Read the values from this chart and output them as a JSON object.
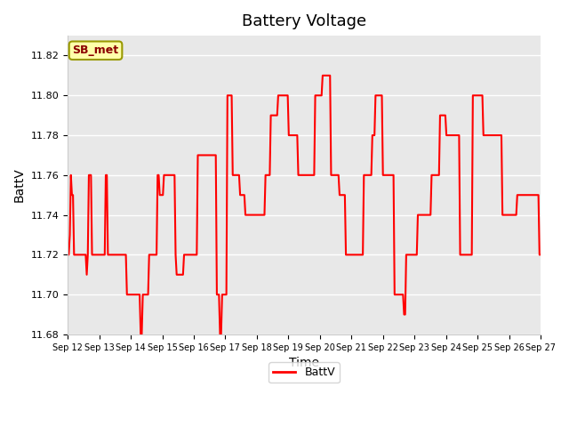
{
  "title": "Battery Voltage",
  "xlabel": "Time",
  "ylabel": "BattV",
  "ylim": [
    11.68,
    11.83
  ],
  "legend_label": "BattV",
  "line_color": "red",
  "line_width": 1.5,
  "annotation_text": "SB_met",
  "background_color": "#ffffff",
  "plot_bg_color": "#e8e8e8",
  "grid_color": "#ffffff",
  "x_tick_labels": [
    "Sep 12",
    "Sep 13",
    "Sep 14",
    "Sep 15",
    "Sep 16",
    "Sep 17",
    "Sep 18",
    "Sep 19",
    "Sep 20",
    "Sep 21",
    "Sep 22",
    "Sep 23",
    "Sep 24",
    "Sep 25",
    "Sep 26",
    "Sep 27"
  ],
  "num_days": 15,
  "data_y": [
    11.72,
    11.72,
    11.73,
    11.76,
    11.75,
    11.75,
    11.72,
    11.72,
    11.72,
    11.72,
    11.72,
    11.72,
    11.72,
    11.72,
    11.72,
    11.72,
    11.72,
    11.72,
    11.71,
    11.72,
    11.76,
    11.76,
    11.76,
    11.72,
    11.72,
    11.72,
    11.72,
    11.72,
    11.72,
    11.72,
    11.72,
    11.72,
    11.72,
    11.72,
    11.72,
    11.72,
    11.76,
    11.76,
    11.72,
    11.72,
    11.72,
    11.72,
    11.72,
    11.72,
    11.72,
    11.72,
    11.72,
    11.72,
    11.72,
    11.72,
    11.72,
    11.72,
    11.72,
    11.72,
    11.72,
    11.72,
    11.7,
    11.7,
    11.7,
    11.7,
    11.7,
    11.7,
    11.7,
    11.7,
    11.7,
    11.7,
    11.7,
    11.7,
    11.7,
    11.68,
    11.68,
    11.7,
    11.7,
    11.7,
    11.7,
    11.7,
    11.7,
    11.72,
    11.72,
    11.72,
    11.72,
    11.72,
    11.72,
    11.72,
    11.72,
    11.76,
    11.76,
    11.75,
    11.75,
    11.75,
    11.75,
    11.76,
    11.76,
    11.76,
    11.76,
    11.76,
    11.76,
    11.76,
    11.76,
    11.76,
    11.76,
    11.76,
    11.72,
    11.71,
    11.71,
    11.71,
    11.71,
    11.71,
    11.71,
    11.71,
    11.72,
    11.72,
    11.72,
    11.72,
    11.72,
    11.72,
    11.72,
    11.72,
    11.72,
    11.72,
    11.72,
    11.72,
    11.72,
    11.77,
    11.77,
    11.77,
    11.77,
    11.77,
    11.77,
    11.77,
    11.77,
    11.77,
    11.77,
    11.77,
    11.77,
    11.77,
    11.77,
    11.77,
    11.77,
    11.77,
    11.77,
    11.7,
    11.7,
    11.7,
    11.68,
    11.68,
    11.7,
    11.7,
    11.7,
    11.7,
    11.7,
    11.8,
    11.8,
    11.8,
    11.8,
    11.8,
    11.76,
    11.76,
    11.76,
    11.76,
    11.76,
    11.76,
    11.76,
    11.75,
    11.75,
    11.75,
    11.75,
    11.75,
    11.74,
    11.74,
    11.74,
    11.74,
    11.74,
    11.74,
    11.74,
    11.74,
    11.74,
    11.74,
    11.74,
    11.74,
    11.74,
    11.74,
    11.74,
    11.74,
    11.74,
    11.74,
    11.74,
    11.76,
    11.76,
    11.76,
    11.76,
    11.76,
    11.79,
    11.79,
    11.79,
    11.79,
    11.79,
    11.79,
    11.79,
    11.8,
    11.8,
    11.8,
    11.8,
    11.8,
    11.8,
    11.8,
    11.8,
    11.8,
    11.8,
    11.78,
    11.78,
    11.78,
    11.78,
    11.78,
    11.78,
    11.78,
    11.78,
    11.78,
    11.76,
    11.76,
    11.76,
    11.76,
    11.76,
    11.76,
    11.76,
    11.76,
    11.76,
    11.76,
    11.76,
    11.76,
    11.76,
    11.76,
    11.76,
    11.76,
    11.8,
    11.8,
    11.8,
    11.8,
    11.8,
    11.8,
    11.8,
    11.81,
    11.81,
    11.81,
    11.81,
    11.81,
    11.81,
    11.81,
    11.81,
    11.76,
    11.76,
    11.76,
    11.76,
    11.76,
    11.76,
    11.76,
    11.76,
    11.75,
    11.75,
    11.75,
    11.75,
    11.75,
    11.75,
    11.72,
    11.72,
    11.72,
    11.72,
    11.72,
    11.72,
    11.72,
    11.72,
    11.72,
    11.72,
    11.72,
    11.72,
    11.72,
    11.72,
    11.72,
    11.72,
    11.72,
    11.76,
    11.76,
    11.76,
    11.76,
    11.76,
    11.76,
    11.76,
    11.76,
    11.78,
    11.78,
    11.78,
    11.8,
    11.8,
    11.8,
    11.8,
    11.8,
    11.8,
    11.8,
    11.76,
    11.76,
    11.76,
    11.76,
    11.76,
    11.76,
    11.76,
    11.76,
    11.76,
    11.76,
    11.76,
    11.7,
    11.7,
    11.7,
    11.7,
    11.7,
    11.7,
    11.7,
    11.7,
    11.7,
    11.69,
    11.69,
    11.72,
    11.72,
    11.72,
    11.72,
    11.72,
    11.72,
    11.72,
    11.72,
    11.72,
    11.72,
    11.72,
    11.74,
    11.74,
    11.74,
    11.74,
    11.74,
    11.74,
    11.74,
    11.74,
    11.74,
    11.74,
    11.74,
    11.74,
    11.74,
    11.76,
    11.76,
    11.76,
    11.76,
    11.76,
    11.76,
    11.76,
    11.76,
    11.79,
    11.79,
    11.79,
    11.79,
    11.79,
    11.79,
    11.78,
    11.78,
    11.78,
    11.78,
    11.78,
    11.78,
    11.78,
    11.78,
    11.78,
    11.78,
    11.78,
    11.78,
    11.78,
    11.72,
    11.72,
    11.72,
    11.72,
    11.72,
    11.72,
    11.72,
    11.72,
    11.72,
    11.72,
    11.72,
    11.72,
    11.8,
    11.8,
    11.8,
    11.8,
    11.8,
    11.8,
    11.8,
    11.8,
    11.8,
    11.8,
    11.78,
    11.78,
    11.78,
    11.78,
    11.78,
    11.78,
    11.78,
    11.78,
    11.78,
    11.78,
    11.78,
    11.78,
    11.78,
    11.78,
    11.78,
    11.78,
    11.78,
    11.78,
    11.74,
    11.74,
    11.74,
    11.74,
    11.74,
    11.74,
    11.74,
    11.74,
    11.74,
    11.74,
    11.74,
    11.74,
    11.74,
    11.74,
    11.75,
    11.75,
    11.75,
    11.75,
    11.75,
    11.75,
    11.75,
    11.75,
    11.75,
    11.75,
    11.75,
    11.75,
    11.75,
    11.75,
    11.75,
    11.75,
    11.75,
    11.75,
    11.75,
    11.75,
    11.75,
    11.72,
    11.72
  ]
}
